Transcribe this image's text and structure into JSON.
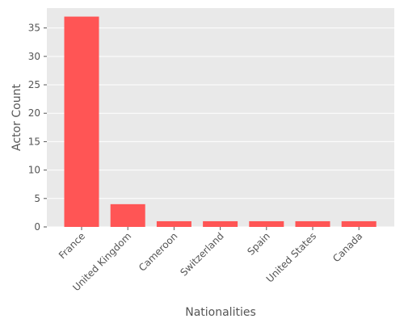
{
  "chart_data": {
    "type": "bar",
    "title": "",
    "xlabel": "Nationalities",
    "ylabel": "Actor Count",
    "categories": [
      "France",
      "United Kingdom",
      "Cameroon",
      "Switzerland",
      "Spain",
      "United States",
      "Canada"
    ],
    "values": [
      37,
      4,
      1,
      1,
      1,
      1,
      1
    ],
    "ylim": [
      0,
      38.5
    ],
    "yticks": [
      0,
      5,
      10,
      15,
      20,
      25,
      30,
      35
    ],
    "grid": true,
    "legend": "none",
    "colors": {
      "bar": "#ff5555",
      "plot_background": "#e9e9e9",
      "grid": "#ffffff",
      "text": "#555555"
    }
  }
}
